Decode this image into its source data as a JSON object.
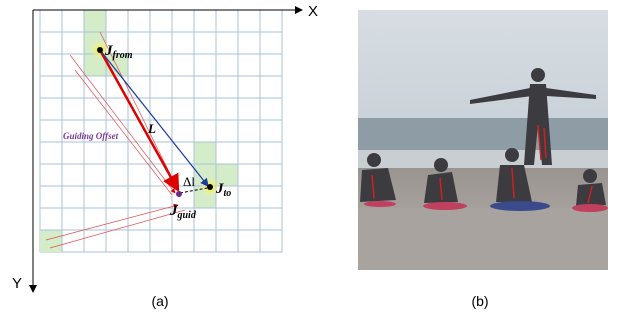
{
  "panel_a": {
    "axis_x": "X",
    "axis_y": "Y",
    "labels": {
      "j_from": {
        "main": "J",
        "sub": "from"
      },
      "length": "L",
      "guiding_offset": "Guiding Offset",
      "delta_l": "Δl",
      "j_to": {
        "main": "J",
        "sub": "to"
      },
      "j_guid": {
        "main": "J",
        "sub": "guid"
      }
    },
    "caption": "(a)"
  },
  "panel_b": {
    "caption": "(b)"
  }
}
